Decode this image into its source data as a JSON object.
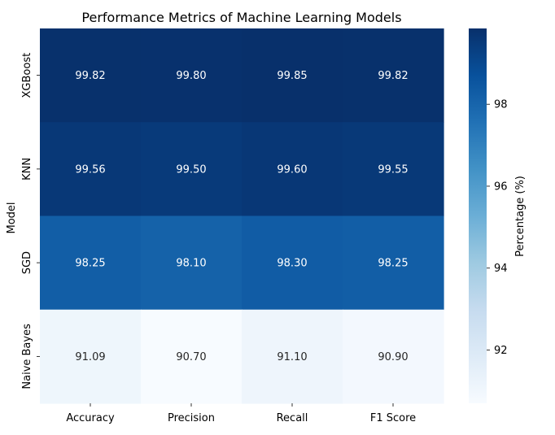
{
  "chart_data": {
    "type": "heatmap",
    "title": "Performance Metrics of Machine Learning Models",
    "xlabel": "",
    "ylabel": "Model",
    "x_categories": [
      "Accuracy",
      "Precision",
      "Recall",
      "F1 Score"
    ],
    "y_categories": [
      "XGBoost",
      "KNN",
      "SGD",
      "Naive Bayes"
    ],
    "values": [
      [
        99.82,
        99.8,
        99.85,
        99.82
      ],
      [
        99.56,
        99.5,
        99.6,
        99.55
      ],
      [
        98.25,
        98.1,
        98.3,
        98.25
      ],
      [
        91.09,
        90.7,
        91.1,
        90.9
      ]
    ],
    "value_format": "0.00",
    "colormap": "Blues",
    "color_range": [
      90.7,
      99.85
    ],
    "colorbar": {
      "label": "Percentage (%)",
      "ticks": [
        92,
        94,
        96,
        98
      ]
    },
    "grid": false,
    "legend": "colorbar-right"
  }
}
